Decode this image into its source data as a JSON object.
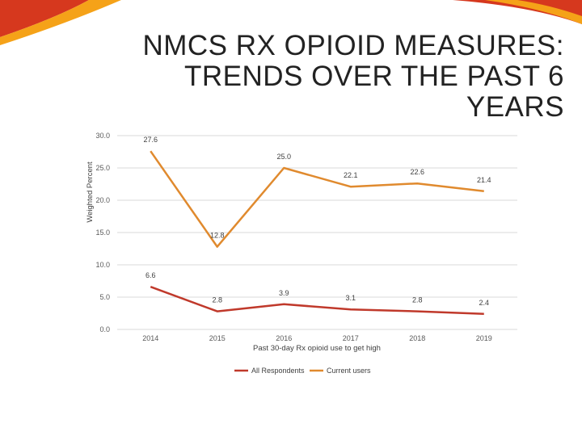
{
  "slide": {
    "title": "NMCS RX OPIOID MEASURES: TRENDS OVER THE PAST 6 YEARS"
  },
  "colors": {
    "all_respondents": "#c0392b",
    "current_users": "#e08a2e",
    "decor_red": "#d6381e",
    "decor_orange": "#f5a218"
  },
  "chart_data": {
    "type": "line",
    "x": [
      "2014",
      "2015",
      "2016",
      "2017",
      "2018",
      "2019"
    ],
    "series": [
      {
        "name": "All Respondents",
        "values": [
          6.6,
          2.8,
          3.9,
          3.1,
          2.8,
          2.4
        ]
      },
      {
        "name": "Current users",
        "values": [
          27.6,
          12.8,
          25.0,
          22.1,
          22.6,
          21.4
        ]
      }
    ],
    "xlabel": "Past 30-day Rx opioid use to get high",
    "ylabel": "Weighted Percent",
    "ylim": [
      0,
      30
    ],
    "yticks": [
      "0.0",
      "5.0",
      "10.0",
      "15.0",
      "20.0",
      "25.0",
      "30.0"
    ],
    "data_labels": [
      [
        "6.6",
        "2.8",
        "3.9",
        "3.1",
        "2.8",
        "2.4"
      ],
      [
        "27.6",
        "12.8",
        "25.0",
        "22.1",
        "22.6",
        "21.4"
      ]
    ],
    "grid": true,
    "legend": "bottom"
  }
}
